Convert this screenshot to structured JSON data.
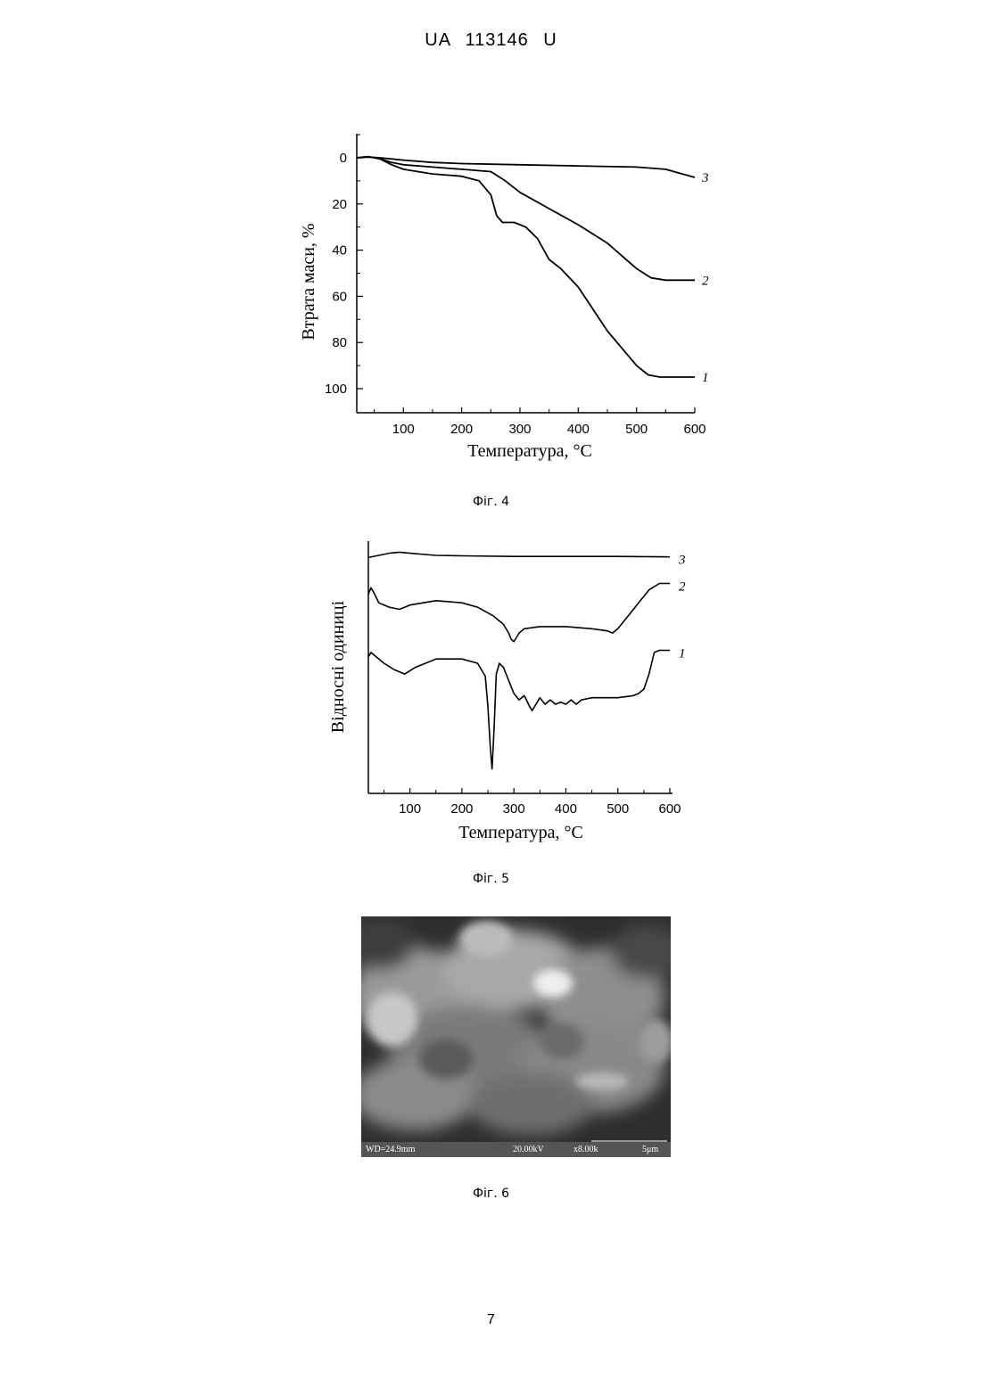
{
  "header": {
    "text": "UA   113146   U"
  },
  "figures": {
    "fig4": {
      "caption": "Фіг. 4",
      "xlabel": "Температура, °C",
      "ylabel": "Втрата маси, %",
      "xticks": [
        "100",
        "200",
        "300",
        "400",
        "500",
        "600"
      ],
      "yticks": [
        "0",
        "20",
        "40",
        "60",
        "80",
        "100"
      ],
      "series_labels": [
        "1",
        "2",
        "3"
      ]
    },
    "fig5": {
      "caption": "Фіг. 5",
      "xlabel": "Температура, °C",
      "ylabel": "Відносні одиниці",
      "xticks": [
        "100",
        "200",
        "300",
        "400",
        "500",
        "600"
      ],
      "series_labels": [
        "1",
        "2",
        "3"
      ]
    },
    "fig6": {
      "caption": "Фіг. 6",
      "bar": {
        "wd": "WD=24.9mm",
        "kv": "20.00kV",
        "mag": "x8.00k",
        "scale": "5μm"
      }
    }
  },
  "page_number": "7",
  "chart_data": [
    {
      "type": "line",
      "xlabel": "Температура, °C",
      "ylabel": "Втрата маси, %",
      "xlim": [
        20,
        600
      ],
      "ylim": [
        0,
        110
      ],
      "y_inverted": true,
      "series": [
        {
          "name": "1",
          "x": [
            20,
            40,
            60,
            80,
            100,
            150,
            200,
            230,
            250,
            260,
            270,
            290,
            310,
            330,
            350,
            370,
            400,
            450,
            500,
            520,
            540,
            600
          ],
          "y": [
            0,
            -0.5,
            0.5,
            3,
            5,
            7,
            8,
            10,
            16,
            25,
            28,
            28,
            30,
            35,
            44,
            48,
            56,
            75,
            90,
            94,
            95,
            95
          ]
        },
        {
          "name": "2",
          "x": [
            20,
            40,
            60,
            80,
            100,
            150,
            200,
            250,
            275,
            300,
            350,
            400,
            450,
            500,
            525,
            550,
            600
          ],
          "y": [
            0,
            -0.5,
            0.5,
            2,
            3,
            4,
            5,
            6,
            10,
            15,
            22,
            29,
            37,
            48,
            52,
            53,
            53
          ]
        },
        {
          "name": "3",
          "x": [
            20,
            40,
            60,
            80,
            100,
            150,
            200,
            300,
            400,
            500,
            550,
            600
          ],
          "y": [
            0,
            -0.3,
            0,
            0.5,
            1,
            2,
            2.5,
            3,
            3.5,
            4,
            5,
            8.5
          ]
        }
      ]
    },
    {
      "type": "line",
      "xlabel": "Температура, °C",
      "ylabel": "Відносні одиниці",
      "xlim": [
        20,
        600
      ],
      "ylim": [
        0,
        100
      ],
      "series": [
        {
          "name": "1",
          "x": [
            20,
            25,
            30,
            50,
            70,
            90,
            110,
            150,
            200,
            230,
            245,
            250,
            255,
            258,
            262,
            266,
            272,
            280,
            290,
            300,
            310,
            320,
            330,
            335,
            340,
            350,
            360,
            370,
            380,
            390,
            400,
            410,
            420,
            430,
            450,
            500,
            530,
            540,
            550,
            560,
            570,
            580,
            600
          ],
          "y": [
            53,
            55,
            54,
            50,
            47,
            45,
            48,
            52,
            52,
            50,
            44,
            30,
            10,
            1,
            20,
            45,
            50,
            48,
            42,
            36,
            33,
            35,
            30,
            28,
            30,
            34,
            31,
            33,
            31,
            32,
            31,
            33,
            31,
            33,
            34,
            34,
            35,
            36,
            38,
            45,
            55,
            56,
            56
          ]
        },
        {
          "name": "2",
          "x": [
            20,
            25,
            30,
            40,
            60,
            80,
            100,
            150,
            200,
            230,
            260,
            280,
            290,
            295,
            300,
            305,
            310,
            320,
            350,
            400,
            450,
            480,
            490,
            500,
            520,
            540,
            560,
            580,
            600
          ],
          "y": [
            82,
            85,
            83,
            78,
            76,
            75,
            77,
            79,
            78,
            76,
            72,
            68,
            64,
            61,
            60,
            62,
            64,
            66,
            67,
            67,
            66,
            65,
            64,
            66,
            72,
            78,
            84,
            87,
            87
          ]
        },
        {
          "name": "3",
          "x": [
            20,
            40,
            60,
            80,
            100,
            150,
            200,
            300,
            400,
            500,
            600
          ],
          "y": [
            99,
            100,
            101,
            101.5,
            101,
            100,
            99.8,
            99.5,
            99.5,
            99.5,
            99.3
          ]
        }
      ]
    }
  ]
}
